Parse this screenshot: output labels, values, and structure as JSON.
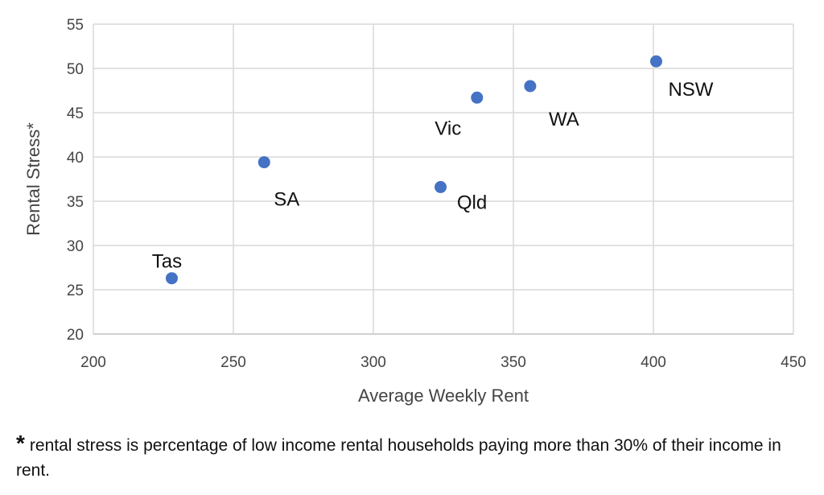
{
  "chart_data": {
    "type": "scatter",
    "title": "",
    "xlabel": "Average Weekly Rent",
    "ylabel": "Rental Stress*",
    "xlim": [
      200,
      450
    ],
    "ylim": [
      20,
      55
    ],
    "xticks": [
      200,
      250,
      300,
      350,
      400,
      450
    ],
    "yticks": [
      20,
      25,
      30,
      35,
      40,
      45,
      50,
      55
    ],
    "grid": true,
    "point_color": "#4472C4",
    "points": [
      {
        "label": "Tas",
        "x": 228,
        "y": 26.3
      },
      {
        "label": "SA",
        "x": 261,
        "y": 39.4
      },
      {
        "label": "Qld",
        "x": 324,
        "y": 36.6
      },
      {
        "label": "Vic",
        "x": 337,
        "y": 46.7
      },
      {
        "label": "WA",
        "x": 356,
        "y": 48.0
      },
      {
        "label": "NSW",
        "x": 401,
        "y": 50.8
      }
    ]
  },
  "footnote": {
    "marker": "*",
    "text": "rental stress is percentage of low income rental households paying more than 30% of their income in rent."
  }
}
